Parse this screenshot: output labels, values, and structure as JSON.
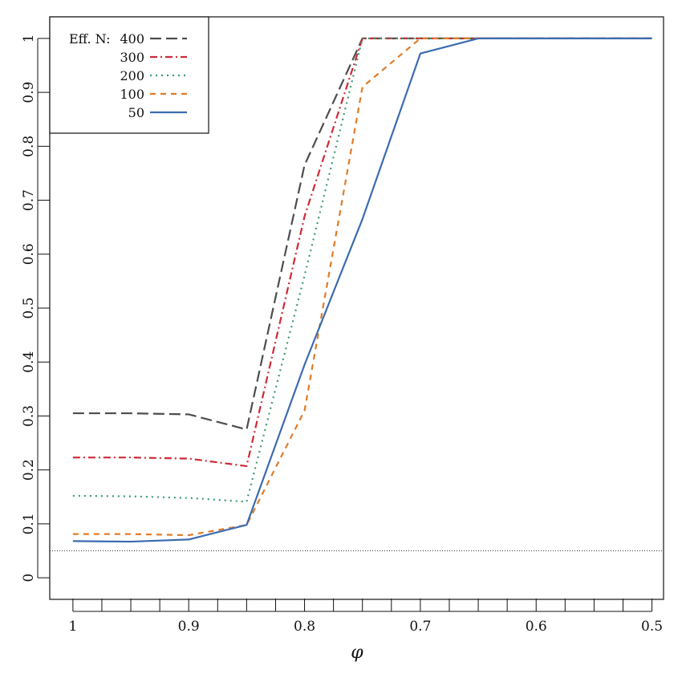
{
  "chart_data": {
    "type": "line",
    "xlabel": "φ",
    "ylabel": "",
    "xlim": [
      1.02,
      0.49
    ],
    "ylim": [
      -0.04,
      1.04
    ],
    "x_ticks": [
      1,
      0.9,
      0.8,
      0.7,
      0.6,
      0.5
    ],
    "x_tick_labels": [
      "1",
      "0.9",
      "0.8",
      "0.7",
      "0.6",
      "0.5"
    ],
    "x_minor_ticks": [
      0.975,
      0.95,
      0.925,
      0.875,
      0.85,
      0.825,
      0.775,
      0.75,
      0.725,
      0.675,
      0.65,
      0.625,
      0.575,
      0.55,
      0.525
    ],
    "y_ticks": [
      0,
      0.1,
      0.2,
      0.3,
      0.4,
      0.5,
      0.6,
      0.7,
      0.8,
      0.9,
      1
    ],
    "y_tick_labels": [
      "0",
      "0.1",
      "0.2",
      "0.3",
      "0.4",
      "0.5",
      "0.6",
      "0.7",
      "0.8",
      "0.9",
      "1"
    ],
    "reference_line": {
      "y": 0.05,
      "style": "dotted",
      "color": "#333333"
    },
    "legend": {
      "title": "Eff. N:",
      "position": "top-left"
    },
    "x": [
      1,
      0.95,
      0.9,
      0.85,
      0.8,
      0.75,
      0.7,
      0.65,
      0.6,
      0.55,
      0.5
    ],
    "series": [
      {
        "name": "400",
        "color": "#4d4d4d",
        "dash": "long-dash",
        "values": [
          0.305,
          0.305,
          0.303,
          0.275,
          0.765,
          1.0,
          1.0,
          1.0,
          1.0,
          1.0,
          1.0
        ]
      },
      {
        "name": "300",
        "color": "#cc2a36",
        "dash": "dash-dot",
        "values": [
          0.223,
          0.223,
          0.221,
          0.207,
          0.67,
          1.0,
          1.0,
          1.0,
          1.0,
          1.0,
          1.0
        ]
      },
      {
        "name": "200",
        "color": "#3d9970",
        "dash": "dotted",
        "values": [
          0.152,
          0.151,
          0.148,
          0.141,
          0.56,
          1.0,
          1.0,
          1.0,
          1.0,
          1.0,
          1.0
        ]
      },
      {
        "name": "100",
        "color": "#e07b28",
        "dash": "dashed",
        "values": [
          0.081,
          0.081,
          0.079,
          0.098,
          0.31,
          0.91,
          1.0,
          1.0,
          1.0,
          1.0,
          1.0
        ]
      },
      {
        "name": "50",
        "color": "#3c6bb0",
        "dash": "solid",
        "values": [
          0.068,
          0.067,
          0.071,
          0.098,
          0.395,
          0.665,
          0.972,
          1.0,
          1.0,
          1.0,
          1.0
        ]
      }
    ]
  }
}
